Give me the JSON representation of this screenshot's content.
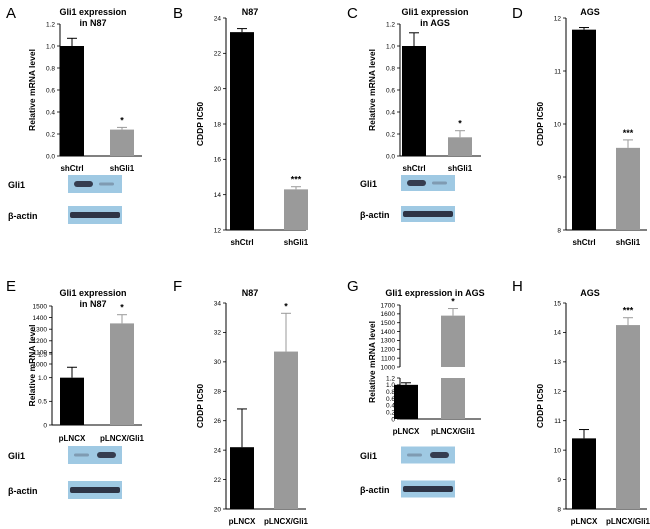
{
  "chart_data": [
    {
      "panel": "A",
      "type": "bar",
      "title": [
        "Gli1 expression",
        "in N87"
      ],
      "ylabel": "Relative mRNA level",
      "categories": [
        "shCtrl",
        "shGli1"
      ],
      "values": [
        1.0,
        0.24
      ],
      "errors": [
        0.07,
        0.02
      ],
      "colors": [
        "#000000",
        "#9a9a9a"
      ],
      "significance": [
        "",
        "*"
      ],
      "ylim": [
        0,
        1.2
      ],
      "yticks": [
        {
          "v": 0,
          "label": "0.0"
        },
        {
          "v": 0.2,
          "label": "0.2"
        },
        {
          "v": 0.4,
          "label": "0.4"
        },
        {
          "v": 0.6,
          "label": "0.6"
        },
        {
          "v": 0.8,
          "label": "0.8"
        },
        {
          "v": 1.0,
          "label": "1.0"
        },
        {
          "v": 1.2,
          "label": "1.2"
        }
      ],
      "blot": {
        "labels": [
          "Gli1",
          "β-actin"
        ]
      }
    },
    {
      "panel": "B",
      "type": "bar",
      "title": [
        "N87"
      ],
      "ylabel": "CDDP IC50",
      "categories": [
        "shCtrl",
        "shGli1"
      ],
      "values": [
        23.2,
        14.3
      ],
      "errors": [
        0.2,
        0.15
      ],
      "colors": [
        "#000000",
        "#9a9a9a"
      ],
      "significance": [
        "",
        "***"
      ],
      "ylim": [
        12,
        24
      ],
      "yticks": [
        {
          "v": 12,
          "label": "12"
        },
        {
          "v": 14,
          "label": "14"
        },
        {
          "v": 16,
          "label": "16"
        },
        {
          "v": 18,
          "label": "18"
        },
        {
          "v": 20,
          "label": "20"
        },
        {
          "v": 22,
          "label": "22"
        },
        {
          "v": 24,
          "label": "24"
        }
      ]
    },
    {
      "panel": "C",
      "type": "bar",
      "title": [
        "Gli1 expression",
        "in AGS"
      ],
      "ylabel": "Relative mRNA level",
      "categories": [
        "shCtrl",
        "shGli1"
      ],
      "values": [
        1.0,
        0.17
      ],
      "errors": [
        0.12,
        0.06
      ],
      "colors": [
        "#000000",
        "#9a9a9a"
      ],
      "significance": [
        "",
        "*"
      ],
      "ylim": [
        0,
        1.2
      ],
      "yticks": [
        {
          "v": 0,
          "label": "0.0"
        },
        {
          "v": 0.2,
          "label": "0.2"
        },
        {
          "v": 0.4,
          "label": "0.4"
        },
        {
          "v": 0.6,
          "label": "0.6"
        },
        {
          "v": 0.8,
          "label": "0.8"
        },
        {
          "v": 1.0,
          "label": "1.0"
        },
        {
          "v": 1.2,
          "label": "1.2"
        }
      ],
      "blot": {
        "labels": [
          "Gli1",
          "β-actin"
        ]
      }
    },
    {
      "panel": "D",
      "type": "bar",
      "title": [
        "AGS"
      ],
      "ylabel": "CDDP IC50",
      "categories": [
        "shCtrl",
        "shGli1"
      ],
      "values": [
        11.78,
        9.55
      ],
      "errors": [
        0.04,
        0.15
      ],
      "colors": [
        "#000000",
        "#9a9a9a"
      ],
      "significance": [
        "",
        "***"
      ],
      "ylim": [
        8,
        12
      ],
      "yticks": [
        {
          "v": 8,
          "label": "8"
        },
        {
          "v": 9,
          "label": "9"
        },
        {
          "v": 10,
          "label": "10"
        },
        {
          "v": 11,
          "label": "11"
        },
        {
          "v": 12,
          "label": "12"
        }
      ]
    },
    {
      "panel": "E",
      "type": "bar",
      "broken_axis": true,
      "title": [
        "Gli1 expression",
        "in N87"
      ],
      "ylabel": "Relative mRNA level",
      "categories": [
        "pLNCX",
        "pLNCX/Gli1"
      ],
      "values": [
        1.0,
        1350
      ],
      "errors": [
        0.22,
        75
      ],
      "colors": [
        "#000000",
        "#9a9a9a"
      ],
      "significance": [
        "",
        "*"
      ],
      "lower_range": [
        0,
        1.5
      ],
      "upper_range": [
        1000,
        1500
      ],
      "yticks": [
        {
          "v": 0,
          "label": "0"
        },
        {
          "v": 0.5,
          "label": "0.5"
        },
        {
          "v": 1.0,
          "label": "1.0"
        },
        {
          "v": 1.5,
          "label": "1.5"
        },
        {
          "v": 1000,
          "label": "1000"
        },
        {
          "v": 1100,
          "label": "1100"
        },
        {
          "v": 1200,
          "label": "1200"
        },
        {
          "v": 1300,
          "label": "1300"
        },
        {
          "v": 1400,
          "label": "1400"
        },
        {
          "v": 1500,
          "label": "1500"
        }
      ],
      "blot": {
        "labels": [
          "Gli1",
          "β-actin"
        ]
      }
    },
    {
      "panel": "F",
      "type": "bar",
      "title": [
        "N87"
      ],
      "ylabel": "CDDP IC50",
      "categories": [
        "pLNCX",
        "pLNCX/Gli1"
      ],
      "values": [
        24.2,
        30.7
      ],
      "errors": [
        2.6,
        2.6
      ],
      "colors": [
        "#000000",
        "#9a9a9a"
      ],
      "significance": [
        "",
        "*"
      ],
      "ylim": [
        20,
        34
      ],
      "yticks": [
        {
          "v": 20,
          "label": "20"
        },
        {
          "v": 22,
          "label": "22"
        },
        {
          "v": 24,
          "label": "24"
        },
        {
          "v": 26,
          "label": "26"
        },
        {
          "v": 28,
          "label": "28"
        },
        {
          "v": 30,
          "label": "30"
        },
        {
          "v": 32,
          "label": "32"
        },
        {
          "v": 34,
          "label": "34"
        }
      ]
    },
    {
      "panel": "G",
      "type": "bar",
      "broken_axis": true,
      "title": [
        "Gli1 expression in AGS"
      ],
      "ylabel": "Relative mRNA level",
      "categories": [
        "pLNCX",
        "pLNCX/Gli1"
      ],
      "values": [
        1.0,
        1580
      ],
      "errors": [
        0.06,
        80
      ],
      "colors": [
        "#000000",
        "#9a9a9a"
      ],
      "significance": [
        "",
        "*"
      ],
      "lower_range": [
        0,
        1.2
      ],
      "upper_range": [
        1000,
        1700
      ],
      "yticks": [
        {
          "v": 0,
          "label": "0"
        },
        {
          "v": 0.2,
          "label": "0.2"
        },
        {
          "v": 0.4,
          "label": "0.4"
        },
        {
          "v": 0.6,
          "label": "0.6"
        },
        {
          "v": 0.8,
          "label": "0.8"
        },
        {
          "v": 1.0,
          "label": "1.0"
        },
        {
          "v": 1.2,
          "label": "1.2"
        },
        {
          "v": 1000,
          "label": "1000"
        },
        {
          "v": 1100,
          "label": "1100"
        },
        {
          "v": 1200,
          "label": "1200"
        },
        {
          "v": 1300,
          "label": "1300"
        },
        {
          "v": 1400,
          "label": "1400"
        },
        {
          "v": 1500,
          "label": "1500"
        },
        {
          "v": 1600,
          "label": "1600"
        },
        {
          "v": 1700,
          "label": "1700"
        }
      ],
      "blot": {
        "labels": [
          "Gli1",
          "β-actin"
        ]
      }
    },
    {
      "panel": "H",
      "type": "bar",
      "title": [
        "AGS"
      ],
      "ylabel": "CDDP IC50",
      "categories": [
        "pLNCX",
        "pLNCX/Gli1"
      ],
      "values": [
        10.4,
        14.25
      ],
      "errors": [
        0.3,
        0.25
      ],
      "colors": [
        "#000000",
        "#9a9a9a"
      ],
      "significance": [
        "",
        "***"
      ],
      "ylim": [
        8,
        15
      ],
      "yticks": [
        {
          "v": 8,
          "label": "8"
        },
        {
          "v": 9,
          "label": "9"
        },
        {
          "v": 10,
          "label": "10"
        },
        {
          "v": 11,
          "label": "11"
        },
        {
          "v": 12,
          "label": "12"
        },
        {
          "v": 13,
          "label": "13"
        },
        {
          "v": 14,
          "label": "14"
        },
        {
          "v": 15,
          "label": "15"
        }
      ]
    }
  ]
}
